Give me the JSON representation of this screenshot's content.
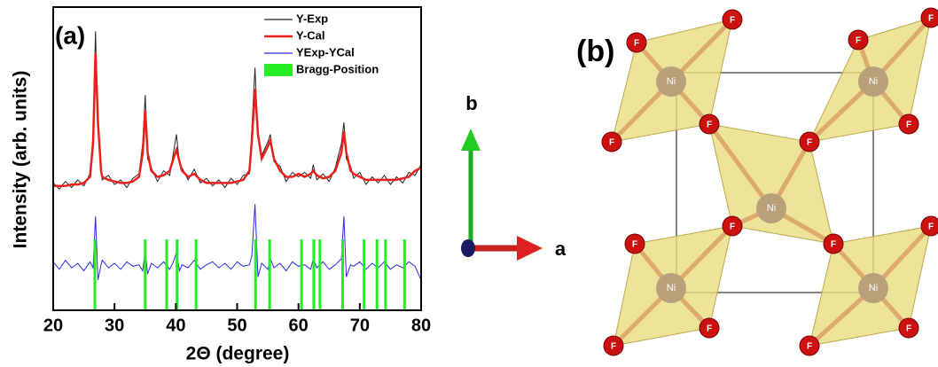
{
  "chart_data": {
    "type": "line",
    "panel_label": "(a)",
    "x_label": "2Θ (degree)",
    "y_label": "Intensity (arb. units)",
    "xlim": [
      20,
      80
    ],
    "ylim": [
      0,
      100
    ],
    "xticks": [
      20,
      30,
      40,
      50,
      60,
      70,
      80
    ],
    "x": [
      20,
      21,
      22,
      23,
      24,
      25,
      26,
      26.5,
      26.9,
      27.3,
      27.8,
      28,
      29,
      30,
      31,
      32,
      33,
      34,
      34.6,
      35,
      35.4,
      36,
      37,
      38,
      39,
      39.6,
      40.1,
      40.6,
      41,
      42,
      43,
      44,
      45,
      46,
      47,
      48,
      49,
      50,
      51,
      52,
      52.4,
      52.9,
      53.4,
      54,
      55,
      55.4,
      56,
      57,
      58,
      59,
      60,
      61,
      62,
      62.4,
      63,
      64,
      65,
      66,
      67,
      67.4,
      67.8,
      68.5,
      69,
      70,
      71,
      72,
      73,
      74,
      75,
      76,
      77,
      78,
      79,
      80
    ],
    "series": [
      {
        "name": "Y-Exp",
        "color": "#222222",
        "values": [
          42,
          40,
          42.5,
          40.5,
          43,
          41,
          45,
          58,
          92,
          60,
          47,
          43,
          44.5,
          41.5,
          43,
          40.5,
          43.5,
          45,
          55,
          71,
          50,
          47,
          42.5,
          46,
          44.5,
          52,
          58,
          48,
          47,
          43,
          46.5,
          42,
          43.5,
          41,
          43,
          40.5,
          43.5,
          41.5,
          44.5,
          45,
          60,
          80,
          57,
          51,
          55.5,
          58,
          49,
          47.5,
          42.5,
          45.5,
          44,
          45.5,
          43.5,
          48,
          43,
          45,
          42.5,
          47,
          55,
          62,
          50,
          47.5,
          43.5,
          45.5,
          41.5,
          44,
          42,
          44.5,
          41.5,
          44,
          42,
          45.5,
          44.5,
          48
        ]
      },
      {
        "name": "Y-Cal",
        "color": "#e8201c",
        "values": [
          41,
          41,
          41,
          41.5,
          41.5,
          42,
          44,
          55,
          85,
          62,
          46,
          44,
          43,
          42.5,
          42,
          42,
          42.5,
          44,
          52,
          66,
          52,
          46,
          44,
          44.5,
          46,
          50,
          53,
          49,
          46,
          44,
          45,
          43,
          42,
          42,
          42,
          42,
          42,
          42.5,
          43,
          46,
          56,
          73,
          58,
          50,
          54,
          56,
          50,
          46,
          44,
          44,
          45,
          44,
          45,
          46,
          44.5,
          43.5,
          44,
          46,
          52,
          59,
          52,
          46,
          45,
          44,
          43,
          43,
          43,
          43,
          43,
          43,
          43.5,
          44,
          46,
          47
        ]
      },
      {
        "name": "YExp-YCal",
        "color": "#2a2ae0",
        "values": [
          16,
          13.5,
          16.5,
          14,
          15.5,
          13,
          16,
          14,
          31,
          10,
          15,
          16.5,
          14,
          15.5,
          13.5,
          16,
          14.5,
          15,
          13,
          20,
          12,
          15.5,
          14,
          16,
          13.5,
          16,
          19,
          13,
          15,
          14,
          16.5,
          13.5,
          15,
          16,
          14,
          15.5,
          13.5,
          16,
          14.5,
          15,
          18,
          35,
          11,
          15.5,
          13.5,
          17,
          14,
          15.5,
          13,
          16,
          14.5,
          15,
          13.5,
          17,
          14,
          16,
          13.5,
          15,
          17,
          31,
          11,
          15,
          14.5,
          16,
          13.5,
          15.5,
          14,
          16,
          13.5,
          15,
          14,
          16,
          14.5,
          10
        ]
      },
      {
        "name": "Bragg-Position",
        "color": "#22ee22",
        "x": [
          26.8,
          35,
          38.5,
          40.2,
          43.3,
          53,
          55.3,
          60.5,
          62.5,
          63.5,
          67.2,
          70.7,
          72.8,
          74.2,
          77.3
        ]
      }
    ]
  },
  "axes_triad": {
    "a": "a",
    "b": "b"
  },
  "structure": {
    "panel_label": "(b)",
    "ni": "Ni",
    "f": "F"
  }
}
